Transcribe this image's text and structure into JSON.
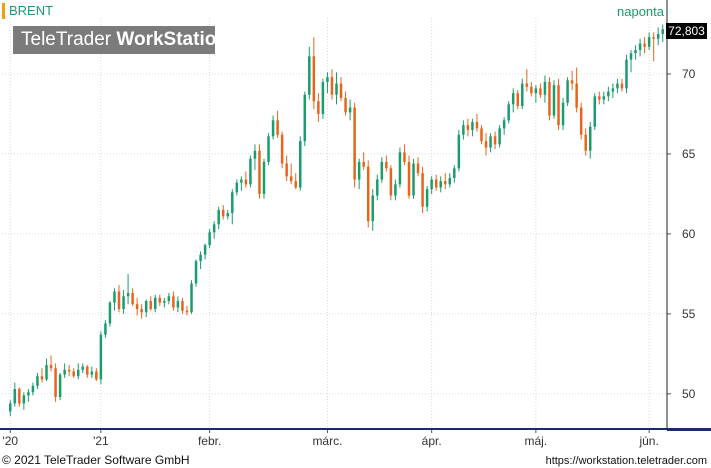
{
  "instrument": {
    "symbol": "BRENT",
    "period": "naponta",
    "last_price": "72,803"
  },
  "branding": {
    "logo_light": "TeleTrader ",
    "logo_bold": "WorkStation"
  },
  "footer": {
    "copyright": "© 2021 TeleTrader Software GmbH",
    "url": "https://workstation.teletrader.com"
  },
  "colors": {
    "up": "#1a9c6c",
    "down": "#e8641a",
    "grid": "#d8d8d8",
    "axis": "#1a2a6c",
    "accent": "#f0a000"
  },
  "chart_data": {
    "type": "candlestick",
    "y_axis": {
      "min": 47.8,
      "max": 73.5,
      "ticks": [
        50,
        55,
        60,
        65,
        70
      ],
      "labels": [
        "50",
        "55",
        "60",
        "65",
        "70"
      ],
      "position": "right"
    },
    "x_axis": {
      "ticks": [
        {
          "label": "'20",
          "index": 0
        },
        {
          "label": "'21",
          "index": 20
        },
        {
          "label": "febr.",
          "index": 44
        },
        {
          "label": "márc.",
          "index": 70
        },
        {
          "label": "ápr.",
          "index": 93
        },
        {
          "label": "máj.",
          "index": 116
        },
        {
          "label": "jún.",
          "index": 141
        }
      ]
    },
    "grid": true,
    "candles": [
      [
        48.9,
        49.6,
        48.6,
        49.4
      ],
      [
        49.4,
        50.7,
        49.2,
        50.3
      ],
      [
        50.3,
        50.4,
        49.2,
        49.4
      ],
      [
        49.4,
        50.1,
        49.0,
        49.9
      ],
      [
        49.9,
        50.3,
        49.5,
        50.1
      ],
      [
        50.1,
        50.7,
        49.9,
        50.5
      ],
      [
        50.5,
        51.3,
        50.3,
        51.1
      ],
      [
        51.1,
        51.6,
        50.7,
        50.9
      ],
      [
        50.9,
        52.2,
        50.8,
        51.8
      ],
      [
        51.8,
        52.4,
        51.4,
        51.6
      ],
      [
        51.6,
        51.9,
        49.5,
        49.8
      ],
      [
        49.8,
        51.3,
        49.6,
        51.2
      ],
      [
        51.2,
        51.9,
        51.0,
        51.5
      ],
      [
        51.5,
        51.8,
        51.1,
        51.4
      ],
      [
        51.4,
        51.6,
        51.0,
        51.1
      ],
      [
        51.1,
        51.9,
        50.9,
        51.5
      ],
      [
        51.5,
        51.9,
        51.3,
        51.7
      ],
      [
        51.7,
        51.8,
        51.0,
        51.2
      ],
      [
        51.2,
        51.7,
        51.0,
        51.4
      ],
      [
        51.4,
        51.6,
        50.8,
        50.9
      ],
      [
        50.9,
        53.9,
        50.6,
        53.7
      ],
      [
        53.7,
        54.6,
        53.5,
        54.4
      ],
      [
        54.4,
        55.8,
        54.2,
        55.7
      ],
      [
        55.7,
        56.6,
        55.2,
        56.4
      ],
      [
        56.4,
        56.8,
        55.1,
        55.3
      ],
      [
        55.3,
        56.5,
        55.0,
        56.1
      ],
      [
        56.1,
        57.5,
        55.6,
        56.3
      ],
      [
        56.3,
        56.6,
        55.5,
        55.6
      ],
      [
        55.6,
        56.0,
        54.9,
        55.3
      ],
      [
        55.3,
        55.6,
        54.7,
        55.1
      ],
      [
        55.1,
        55.9,
        54.8,
        55.8
      ],
      [
        55.8,
        56.1,
        55.2,
        55.3
      ],
      [
        55.3,
        56.2,
        55.1,
        56.0
      ],
      [
        56.0,
        56.2,
        55.5,
        55.7
      ],
      [
        55.7,
        56.0,
        55.4,
        55.8
      ],
      [
        55.8,
        56.3,
        55.6,
        56.1
      ],
      [
        56.1,
        56.4,
        55.2,
        55.4
      ],
      [
        55.4,
        56.1,
        55.1,
        55.8
      ],
      [
        55.8,
        56.0,
        55.0,
        55.2
      ],
      [
        55.2,
        55.5,
        54.9,
        55.1
      ],
      [
        55.1,
        57.1,
        55.0,
        56.9
      ],
      [
        56.9,
        58.4,
        56.7,
        58.3
      ],
      [
        58.3,
        58.9,
        57.8,
        58.7
      ],
      [
        58.7,
        59.4,
        58.4,
        59.3
      ],
      [
        59.3,
        60.3,
        59.1,
        60.1
      ],
      [
        60.1,
        60.8,
        59.7,
        60.6
      ],
      [
        60.6,
        61.7,
        60.3,
        61.5
      ],
      [
        61.5,
        61.8,
        60.9,
        61.1
      ],
      [
        61.1,
        61.5,
        60.9,
        61.3
      ],
      [
        61.3,
        62.8,
        60.6,
        62.6
      ],
      [
        62.6,
        63.4,
        62.4,
        63.2
      ],
      [
        63.2,
        63.6,
        62.7,
        63.4
      ],
      [
        63.4,
        63.9,
        62.9,
        63.1
      ],
      [
        63.1,
        64.9,
        62.9,
        64.7
      ],
      [
        64.7,
        65.6,
        64.0,
        65.2
      ],
      [
        65.2,
        65.6,
        62.2,
        62.5
      ],
      [
        62.5,
        64.7,
        62.2,
        64.5
      ],
      [
        64.5,
        66.3,
        64.3,
        66.1
      ],
      [
        66.1,
        67.4,
        65.9,
        67.1
      ],
      [
        67.1,
        67.7,
        66.0,
        66.2
      ],
      [
        66.2,
        66.4,
        64.1,
        64.4
      ],
      [
        64.4,
        64.9,
        63.3,
        63.6
      ],
      [
        63.6,
        64.4,
        63.1,
        63.3
      ],
      [
        63.3,
        63.8,
        62.8,
        62.9
      ],
      [
        62.9,
        66.1,
        62.7,
        65.8
      ],
      [
        65.8,
        68.9,
        65.5,
        68.7
      ],
      [
        68.7,
        71.7,
        68.4,
        71.1
      ],
      [
        71.1,
        72.3,
        67.8,
        68.3
      ],
      [
        68.3,
        68.8,
        67.0,
        67.5
      ],
      [
        67.5,
        69.7,
        67.2,
        69.5
      ],
      [
        69.5,
        70.1,
        68.8,
        69.8
      ],
      [
        69.8,
        70.3,
        68.4,
        68.7
      ],
      [
        68.7,
        70.1,
        68.1,
        69.4
      ],
      [
        69.4,
        69.8,
        68.3,
        68.5
      ],
      [
        68.5,
        68.9,
        67.4,
        67.6
      ],
      [
        67.6,
        68.4,
        67.1,
        67.9
      ],
      [
        67.9,
        68.2,
        62.9,
        63.4
      ],
      [
        63.4,
        64.7,
        62.8,
        64.5
      ],
      [
        64.5,
        65.1,
        64.0,
        64.2
      ],
      [
        64.2,
        64.6,
        60.4,
        60.8
      ],
      [
        60.8,
        62.8,
        60.2,
        62.4
      ],
      [
        62.4,
        63.7,
        62.1,
        63.4
      ],
      [
        63.4,
        64.8,
        63.2,
        64.5
      ],
      [
        64.5,
        64.9,
        63.9,
        64.1
      ],
      [
        64.1,
        64.3,
        62.1,
        62.4
      ],
      [
        62.4,
        63.4,
        62.1,
        63.1
      ],
      [
        63.1,
        65.4,
        62.9,
        65.1
      ],
      [
        65.1,
        65.6,
        64.3,
        64.5
      ],
      [
        64.5,
        64.9,
        62.2,
        62.4
      ],
      [
        62.4,
        64.7,
        62.2,
        64.4
      ],
      [
        64.4,
        64.8,
        63.6,
        63.8
      ],
      [
        63.8,
        64.2,
        61.3,
        61.7
      ],
      [
        61.7,
        63.0,
        61.4,
        62.8
      ],
      [
        62.8,
        63.6,
        62.5,
        63.4
      ],
      [
        63.4,
        63.7,
        62.7,
        62.9
      ],
      [
        62.9,
        63.6,
        62.6,
        63.3
      ],
      [
        63.3,
        63.8,
        62.8,
        63.1
      ],
      [
        63.1,
        63.8,
        62.9,
        63.5
      ],
      [
        63.5,
        64.3,
        63.2,
        64.1
      ],
      [
        64.1,
        66.5,
        63.9,
        66.2
      ],
      [
        66.2,
        67.1,
        65.9,
        66.8
      ],
      [
        66.8,
        67.2,
        66.1,
        66.5
      ],
      [
        66.5,
        67.2,
        66.1,
        67.0
      ],
      [
        67.0,
        67.5,
        66.4,
        66.6
      ],
      [
        66.6,
        66.8,
        65.6,
        65.8
      ],
      [
        65.8,
        66.3,
        64.9,
        65.4
      ],
      [
        65.4,
        66.3,
        65.1,
        66.1
      ],
      [
        66.1,
        66.4,
        65.3,
        65.6
      ],
      [
        65.6,
        66.8,
        65.4,
        66.6
      ],
      [
        66.6,
        67.3,
        66.2,
        67.1
      ],
      [
        67.1,
        68.3,
        66.9,
        68.1
      ],
      [
        68.1,
        69.1,
        67.6,
        68.8
      ],
      [
        68.8,
        69.0,
        67.8,
        68.0
      ],
      [
        68.0,
        69.7,
        67.8,
        69.4
      ],
      [
        69.4,
        70.3,
        68.9,
        69.2
      ],
      [
        69.2,
        69.5,
        68.6,
        68.8
      ],
      [
        68.8,
        69.3,
        68.2,
        69.1
      ],
      [
        69.1,
        69.4,
        68.5,
        68.7
      ],
      [
        68.7,
        69.9,
        68.2,
        69.5
      ],
      [
        69.5,
        69.8,
        67.1,
        67.4
      ],
      [
        67.4,
        69.6,
        67.2,
        69.3
      ],
      [
        69.3,
        69.7,
        66.5,
        66.8
      ],
      [
        66.8,
        68.5,
        66.5,
        68.2
      ],
      [
        68.2,
        69.8,
        68.0,
        69.6
      ],
      [
        69.6,
        70.2,
        69.0,
        69.4
      ],
      [
        69.4,
        70.4,
        67.6,
        67.9
      ],
      [
        67.9,
        68.2,
        65.9,
        66.2
      ],
      [
        66.2,
        66.6,
        64.9,
        65.2
      ],
      [
        65.2,
        67.0,
        64.7,
        66.7
      ],
      [
        66.7,
        68.8,
        66.5,
        68.6
      ],
      [
        68.6,
        68.9,
        68.1,
        68.4
      ],
      [
        68.4,
        68.9,
        68.1,
        68.6
      ],
      [
        68.6,
        69.2,
        68.3,
        68.9
      ],
      [
        68.9,
        69.4,
        68.5,
        69.1
      ],
      [
        69.1,
        69.7,
        68.8,
        69.4
      ],
      [
        69.4,
        69.7,
        68.9,
        69.1
      ],
      [
        69.1,
        71.2,
        68.8,
        70.9
      ],
      [
        70.9,
        71.5,
        70.1,
        71.3
      ],
      [
        71.3,
        71.8,
        70.9,
        71.5
      ],
      [
        71.5,
        72.2,
        71.1,
        71.9
      ],
      [
        71.9,
        72.3,
        71.3,
        71.7
      ],
      [
        71.7,
        72.6,
        71.5,
        72.3
      ],
      [
        72.3,
        72.6,
        70.8,
        72.2
      ],
      [
        72.2,
        72.9,
        71.8,
        72.5
      ],
      [
        72.5,
        73.1,
        72.0,
        72.8
      ]
    ]
  }
}
